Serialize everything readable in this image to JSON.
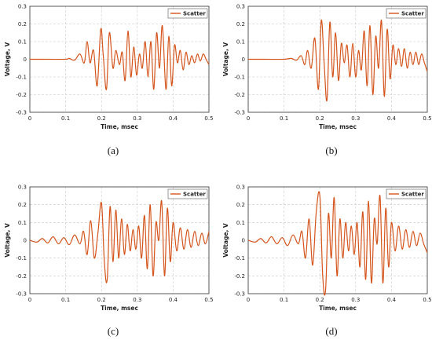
{
  "chart_data": [
    {
      "type": "line",
      "caption": "(a)",
      "xlabel": "Time, msec",
      "ylabel": "Voltage, V",
      "xlim": [
        0,
        0.5
      ],
      "ylim": [
        -0.3,
        0.3
      ],
      "x_ticks": [
        "0",
        "0.1",
        "0.2",
        "0.3",
        "0.4",
        "0.5"
      ],
      "y_ticks": [
        "0.3",
        "0.2",
        "0.1",
        "0",
        "-0.1",
        "-0.2",
        "-0.3"
      ],
      "grid": true,
      "legend": "top-right",
      "series": [
        {
          "name": "Scatter",
          "color": "#d4541b",
          "x": [
            0,
            0.05,
            0.1,
            0.11,
            0.125,
            0.14,
            0.152,
            0.16,
            0.168,
            0.178,
            0.188,
            0.198,
            0.205,
            0.214,
            0.222,
            0.232,
            0.24,
            0.25,
            0.258,
            0.266,
            0.274,
            0.282,
            0.29,
            0.298,
            0.306,
            0.314,
            0.322,
            0.33,
            0.338,
            0.346,
            0.354,
            0.362,
            0.37,
            0.38,
            0.388,
            0.396,
            0.404,
            0.412,
            0.42,
            0.428,
            0.436,
            0.444,
            0.452,
            0.46,
            0.468,
            0.476,
            0.484,
            0.492,
            0.5
          ],
          "y": [
            0,
            0,
            0,
            0.005,
            -0.005,
            0.03,
            -0.02,
            0.1,
            -0.02,
            0.05,
            -0.15,
            0.17,
            0.02,
            -0.17,
            0.15,
            -0.05,
            0.05,
            -0.03,
            0.04,
            -0.12,
            0.16,
            -0.1,
            0.07,
            -0.09,
            0.03,
            -0.05,
            0.1,
            -0.1,
            0.1,
            -0.17,
            0.15,
            -0.05,
            0.19,
            -0.17,
            0.13,
            -0.15,
            0.08,
            -0.02,
            0.05,
            -0.06,
            0.04,
            -0.03,
            0.02,
            -0.02,
            0.03,
            -0.01,
            0.03,
            0,
            -0.03
          ]
        }
      ]
    },
    {
      "type": "line",
      "caption": "(b)",
      "xlabel": "Time, msec",
      "ylabel": "Voltage, V",
      "xlim": [
        0,
        0.5
      ],
      "ylim": [
        -0.3,
        0.3
      ],
      "x_ticks": [
        "0",
        "0.1",
        "0.2",
        "0.3",
        "0.4",
        "0.5"
      ],
      "y_ticks": [
        "0.3",
        "0.2",
        "0.1",
        "0",
        "-0.1",
        "-0.2",
        "-0.3"
      ],
      "grid": true,
      "legend": "top-right",
      "series": [
        {
          "name": "Scatter",
          "color": "#d4541b",
          "x": [
            0,
            0.05,
            0.1,
            0.12,
            0.135,
            0.148,
            0.158,
            0.166,
            0.176,
            0.186,
            0.196,
            0.204,
            0.212,
            0.22,
            0.228,
            0.236,
            0.244,
            0.252,
            0.26,
            0.268,
            0.276,
            0.284,
            0.292,
            0.3,
            0.308,
            0.316,
            0.324,
            0.332,
            0.34,
            0.348,
            0.356,
            0.364,
            0.372,
            0.38,
            0.388,
            0.396,
            0.404,
            0.412,
            0.42,
            0.428,
            0.436,
            0.444,
            0.452,
            0.46,
            0.468,
            0.476,
            0.484,
            0.492,
            0.5
          ],
          "y": [
            0,
            0,
            0,
            0.005,
            -0.005,
            0.02,
            -0.03,
            0.05,
            -0.05,
            0.12,
            -0.17,
            0.22,
            -0.02,
            -0.23,
            0.21,
            -0.1,
            0.15,
            -0.12,
            0.09,
            -0.02,
            0.08,
            -0.1,
            0.09,
            -0.1,
            0.05,
            -0.06,
            0.16,
            -0.15,
            0.19,
            -0.2,
            0.13,
            -0.05,
            0.22,
            -0.21,
            0.17,
            -0.11,
            0.08,
            -0.03,
            0.06,
            -0.04,
            0.06,
            -0.05,
            0.04,
            -0.03,
            0.04,
            -0.03,
            0.03,
            -0.02,
            -0.07
          ]
        }
      ]
    },
    {
      "type": "line",
      "caption": "(c)",
      "xlabel": "Time, msec",
      "ylabel": "Voltage, V",
      "xlim": [
        0,
        0.5
      ],
      "ylim": [
        -0.3,
        0.3
      ],
      "x_ticks": [
        "0",
        "0.1",
        "0.2",
        "0.3",
        "0.4",
        "0.5"
      ],
      "y_ticks": [
        "0.3",
        "0.2",
        "0.1",
        "0",
        "-0.1",
        "-0.2",
        "-0.3"
      ],
      "grid": true,
      "legend": "top-right",
      "series": [
        {
          "name": "Scatter",
          "color": "#d4541b",
          "x": [
            0,
            0.02,
            0.035,
            0.05,
            0.065,
            0.08,
            0.095,
            0.11,
            0.125,
            0.14,
            0.15,
            0.16,
            0.17,
            0.18,
            0.19,
            0.2,
            0.208,
            0.216,
            0.224,
            0.232,
            0.24,
            0.248,
            0.256,
            0.264,
            0.272,
            0.28,
            0.288,
            0.296,
            0.304,
            0.312,
            0.32,
            0.328,
            0.336,
            0.344,
            0.352,
            0.36,
            0.368,
            0.376,
            0.384,
            0.392,
            0.4,
            0.41,
            0.42,
            0.43,
            0.44,
            0.45,
            0.46,
            0.47,
            0.48,
            0.49,
            0.5
          ],
          "y": [
            0,
            -0.01,
            0.01,
            -0.015,
            0.02,
            -0.02,
            0.015,
            -0.025,
            0.03,
            -0.02,
            0.05,
            -0.08,
            0.11,
            -0.1,
            0.04,
            0.21,
            -0.12,
            -0.22,
            0.19,
            -0.12,
            0.17,
            -0.1,
            0.12,
            -0.08,
            0.09,
            -0.06,
            0.06,
            -0.05,
            0.08,
            -0.1,
            0.14,
            -0.16,
            0.2,
            -0.2,
            0.1,
            0,
            0.22,
            -0.2,
            0.18,
            -0.12,
            0.1,
            -0.06,
            0.07,
            -0.05,
            0.06,
            -0.04,
            0.05,
            -0.03,
            0.04,
            -0.02,
            0.05
          ]
        }
      ]
    },
    {
      "type": "line",
      "caption": "(d)",
      "xlabel": "Time, msec",
      "ylabel": "Voltage, V",
      "xlim": [
        0,
        0.5
      ],
      "ylim": [
        -0.3,
        0.3
      ],
      "x_ticks": [
        "0",
        "0.1",
        "0.2",
        "0.3",
        "0.4",
        "0.5"
      ],
      "y_ticks": [
        "0.3",
        "0.2",
        "0.1",
        "0",
        "-0.1",
        "-0.2",
        "-0.3"
      ],
      "grid": true,
      "legend": "top-right",
      "series": [
        {
          "name": "Scatter",
          "color": "#d4541b",
          "x": [
            0,
            0.02,
            0.035,
            0.05,
            0.065,
            0.08,
            0.095,
            0.11,
            0.125,
            0.14,
            0.15,
            0.16,
            0.17,
            0.18,
            0.19,
            0.2,
            0.208,
            0.216,
            0.224,
            0.232,
            0.24,
            0.248,
            0.256,
            0.264,
            0.272,
            0.28,
            0.288,
            0.296,
            0.304,
            0.312,
            0.32,
            0.328,
            0.336,
            0.344,
            0.352,
            0.36,
            0.368,
            0.376,
            0.384,
            0.392,
            0.4,
            0.41,
            0.42,
            0.43,
            0.44,
            0.45,
            0.46,
            0.47,
            0.48,
            0.49,
            0.5
          ],
          "y": [
            0,
            -0.01,
            0.01,
            -0.015,
            0.02,
            -0.02,
            0.015,
            -0.03,
            0.03,
            -0.02,
            0.05,
            -0.1,
            0.12,
            -0.14,
            0.16,
            0.25,
            -0.2,
            -0.28,
            0.15,
            -0.1,
            0.24,
            -0.2,
            0.12,
            -0.1,
            0.1,
            -0.06,
            0.08,
            -0.08,
            0.1,
            -0.15,
            0.16,
            -0.22,
            0.22,
            -0.24,
            0.12,
            -0.02,
            0.25,
            -0.24,
            0.18,
            -0.15,
            0.1,
            -0.06,
            0.08,
            -0.05,
            0.06,
            -0.04,
            0.05,
            -0.03,
            0.04,
            -0.02,
            -0.07
          ]
        }
      ]
    }
  ]
}
